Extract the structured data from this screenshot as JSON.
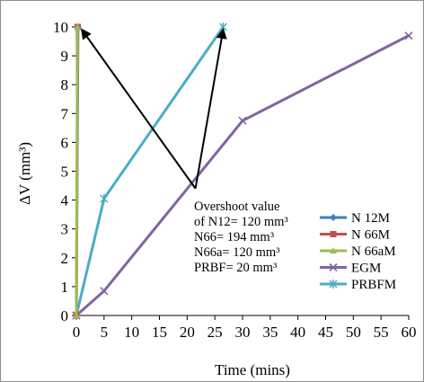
{
  "chart_data": {
    "type": "line",
    "xlabel": "Time (mins)",
    "ylabel": "ΔV (mm³)",
    "xlim": [
      0,
      60
    ],
    "ylim": [
      0,
      10
    ],
    "x_ticks": [
      "0",
      "5",
      "10",
      "15",
      "20",
      "25",
      "30",
      "35",
      "40",
      "45",
      "50",
      "55",
      "60"
    ],
    "y_ticks": [
      "0",
      "1",
      "2",
      "3",
      "4",
      "5",
      "6",
      "7",
      "8",
      "9",
      "10"
    ],
    "grid": false,
    "legend_position": "right",
    "series": [
      {
        "name": "N 12M",
        "color": "#3f7fbf",
        "marker": "diamond",
        "x": [
          0,
          0.3
        ],
        "y": [
          0,
          10
        ]
      },
      {
        "name": "N 66M",
        "color": "#c0504d",
        "marker": "square",
        "x": [
          0,
          0.25
        ],
        "y": [
          0,
          10
        ]
      },
      {
        "name": "N 66aM",
        "color": "#9bbb59",
        "marker": "triangle",
        "x": [
          0,
          0.2
        ],
        "y": [
          0,
          10
        ]
      },
      {
        "name": "EGM",
        "color": "#8064a2",
        "marker": "x",
        "x": [
          0,
          5,
          30,
          60
        ],
        "y": [
          0,
          0.85,
          6.75,
          9.7
        ]
      },
      {
        "name": "PRBFM",
        "color": "#4bacc6",
        "marker": "star",
        "x": [
          0,
          5,
          26.5
        ],
        "y": [
          0,
          4.05,
          10
        ]
      }
    ],
    "annotation": {
      "lines": [
        "Overshoot value",
        "of N12= 120 mm³",
        "N66= 194 mm³",
        "N66a= 120 mm³",
        "PRBF= 20 mm³"
      ],
      "arrow_targets": [
        [
          1,
          10
        ],
        [
          26.5,
          10
        ]
      ],
      "arrow_origin": [
        21.5,
        4.4
      ]
    }
  }
}
